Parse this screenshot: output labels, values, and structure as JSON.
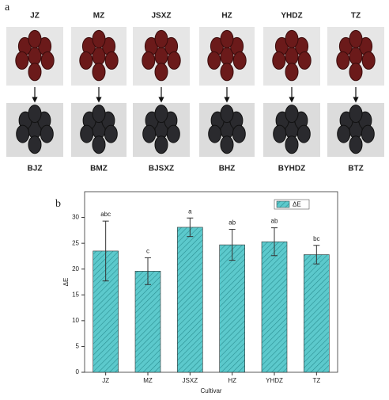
{
  "panel_a": {
    "label": "a",
    "top_labels": [
      "JZ",
      "MZ",
      "JSXZ",
      "HZ",
      "YHDZ",
      "TZ"
    ],
    "bottom_labels": [
      "BJZ",
      "BMZ",
      "BJSXZ",
      "BHZ",
      "BYHDZ",
      "BTZ"
    ]
  },
  "chart_data": {
    "type": "bar",
    "panel_label": "b",
    "x_label": "Cultivar",
    "y_label": "ΔE",
    "categories": [
      "JZ",
      "MZ",
      "JSXZ",
      "HZ",
      "YHDZ",
      "TZ"
    ],
    "series": [
      {
        "name": "ΔE",
        "color": "#5cc9cc",
        "values": [
          23.5,
          19.6,
          28.1,
          24.7,
          25.3,
          22.8
        ],
        "errors": [
          5.8,
          2.6,
          1.8,
          3.0,
          2.7,
          1.8
        ]
      }
    ],
    "annotations": [
      "abc",
      "c",
      "a",
      "ab",
      "ab",
      "bc"
    ],
    "ylim": [
      0,
      35
    ],
    "yticks": [
      0,
      5,
      10,
      15,
      20,
      25,
      30
    ],
    "legend": "top-right",
    "hatch": true
  }
}
